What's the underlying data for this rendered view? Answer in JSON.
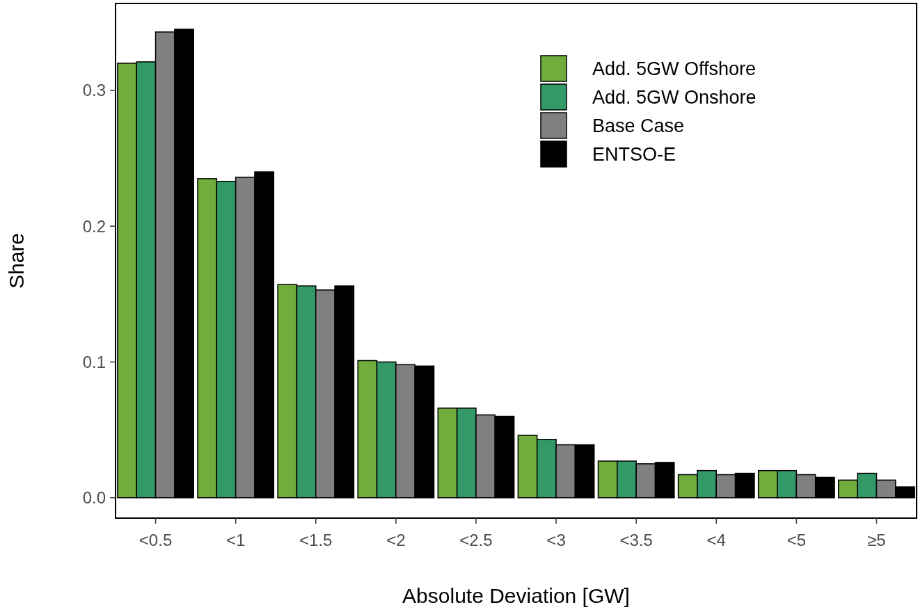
{
  "chart_data": {
    "type": "bar",
    "xlabel": "Absolute Deviation [GW]",
    "ylabel": "Share",
    "categories": [
      "<0.5",
      "<1",
      "<1.5",
      "<2",
      "<2.5",
      "<3",
      "<3.5",
      "<4",
      "<5",
      "≥5"
    ],
    "ylim": [
      -0.015,
      0.364
    ],
    "yticks": [
      {
        "value": 0,
        "label": "0.0"
      },
      0.1,
      0.2,
      0.3
    ],
    "grid": false,
    "legend": "top right",
    "series": [
      {
        "name": "Add. 5GW Offshore",
        "color": "#70ad3d",
        "values": [
          0.32,
          0.235,
          0.157,
          0.101,
          0.066,
          0.046,
          0.027,
          0.017,
          0.02,
          0.013
        ]
      },
      {
        "name": "Add. 5GW Onshore",
        "color": "#339966",
        "values": [
          0.321,
          0.233,
          0.156,
          0.1,
          0.066,
          0.043,
          0.027,
          0.02,
          0.02,
          0.018
        ]
      },
      {
        "name": "Base Case",
        "color": "#808080",
        "values": [
          0.343,
          0.236,
          0.153,
          0.098,
          0.061,
          0.039,
          0.025,
          0.017,
          0.017,
          0.013
        ]
      },
      {
        "name": "ENTSO-E",
        "color": "#000000",
        "values": [
          0.345,
          0.24,
          0.156,
          0.097,
          0.06,
          0.039,
          0.026,
          0.018,
          0.015,
          0.008
        ]
      }
    ]
  }
}
